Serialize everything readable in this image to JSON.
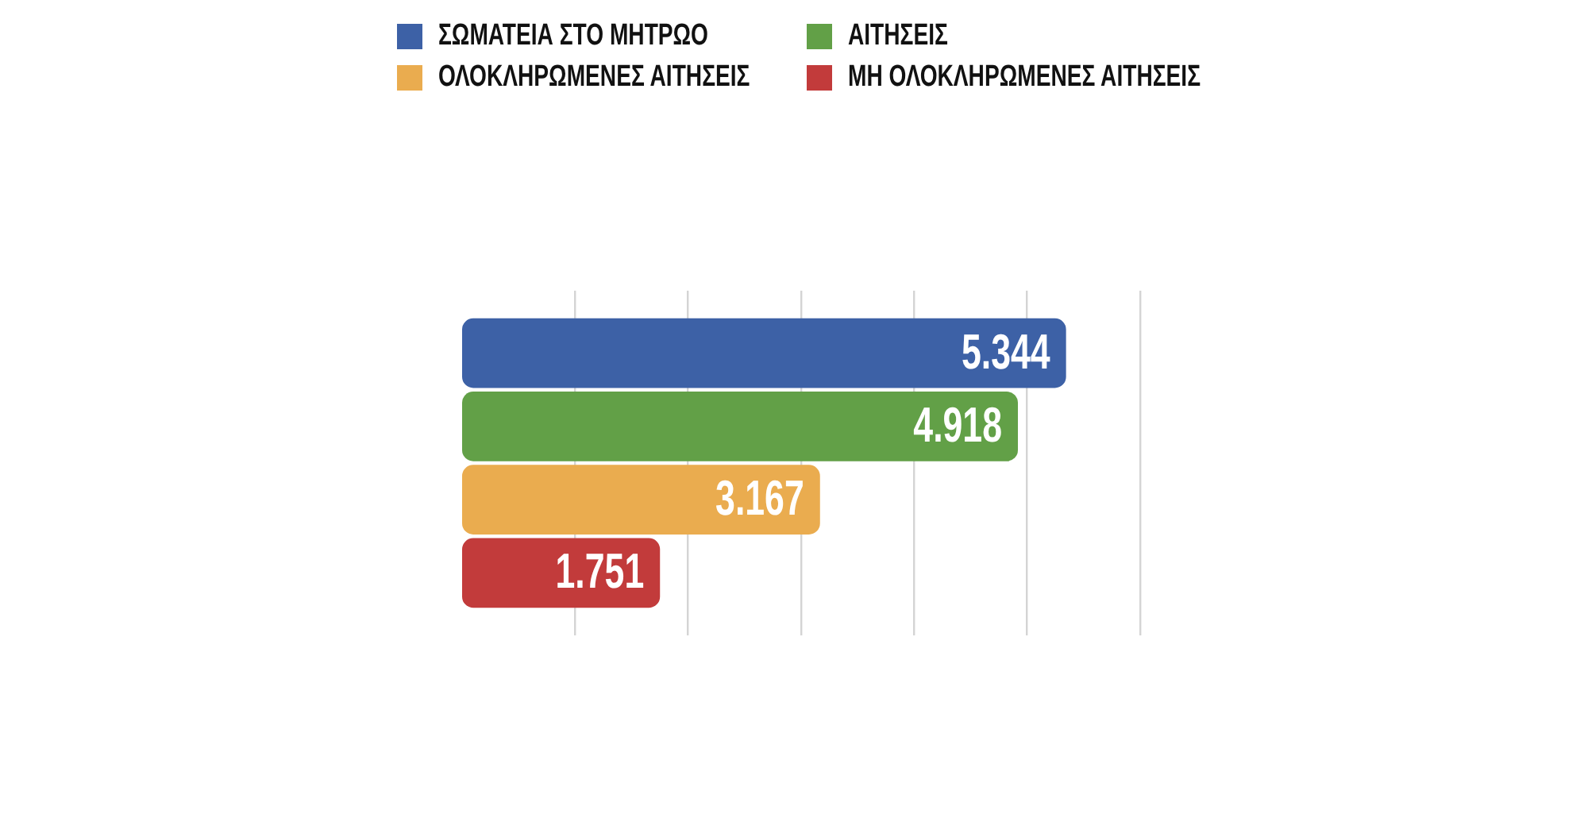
{
  "chart_data": {
    "type": "bar",
    "orientation": "horizontal",
    "categories": [
      null
    ],
    "series": [
      {
        "name": "ΣΩΜΑΤΕΙΑ ΣΤΟ ΜΗΤΡΩΟ",
        "color": "#3d61a6",
        "values": [
          5344
        ],
        "value_labels": [
          "5.344"
        ]
      },
      {
        "name": "ΑΙΤΗΣΕΙΣ",
        "color": "#62a047",
        "values": [
          4918
        ],
        "value_labels": [
          "4.918"
        ]
      },
      {
        "name": "ΟΛΟΚΛΗΡΩΜΕΝΕΣ ΑΙΤΗΣΕΙΣ",
        "color": "#eaac4f",
        "values": [
          3167
        ],
        "value_labels": [
          "3.167"
        ]
      },
      {
        "name": "ΜΗ ΟΛΟΚΛΗΡΩΜΕΝΕΣ ΑΙΤΗΣΕΙΣ",
        "color": "#c23b3b",
        "values": [
          1751
        ],
        "value_labels": [
          "1.751"
        ]
      }
    ],
    "xlim": [
      0,
      6000
    ],
    "xticks": [
      {
        "value": 1000,
        "label": null
      },
      {
        "value": 2000,
        "label": null
      },
      {
        "value": 3000,
        "label": null
      },
      {
        "value": 4000,
        "label": null
      },
      {
        "value": 5000,
        "label": null
      },
      {
        "value": 6000,
        "label": null
      }
    ],
    "grid": "x",
    "legend": "top",
    "tick_labels": false
  }
}
